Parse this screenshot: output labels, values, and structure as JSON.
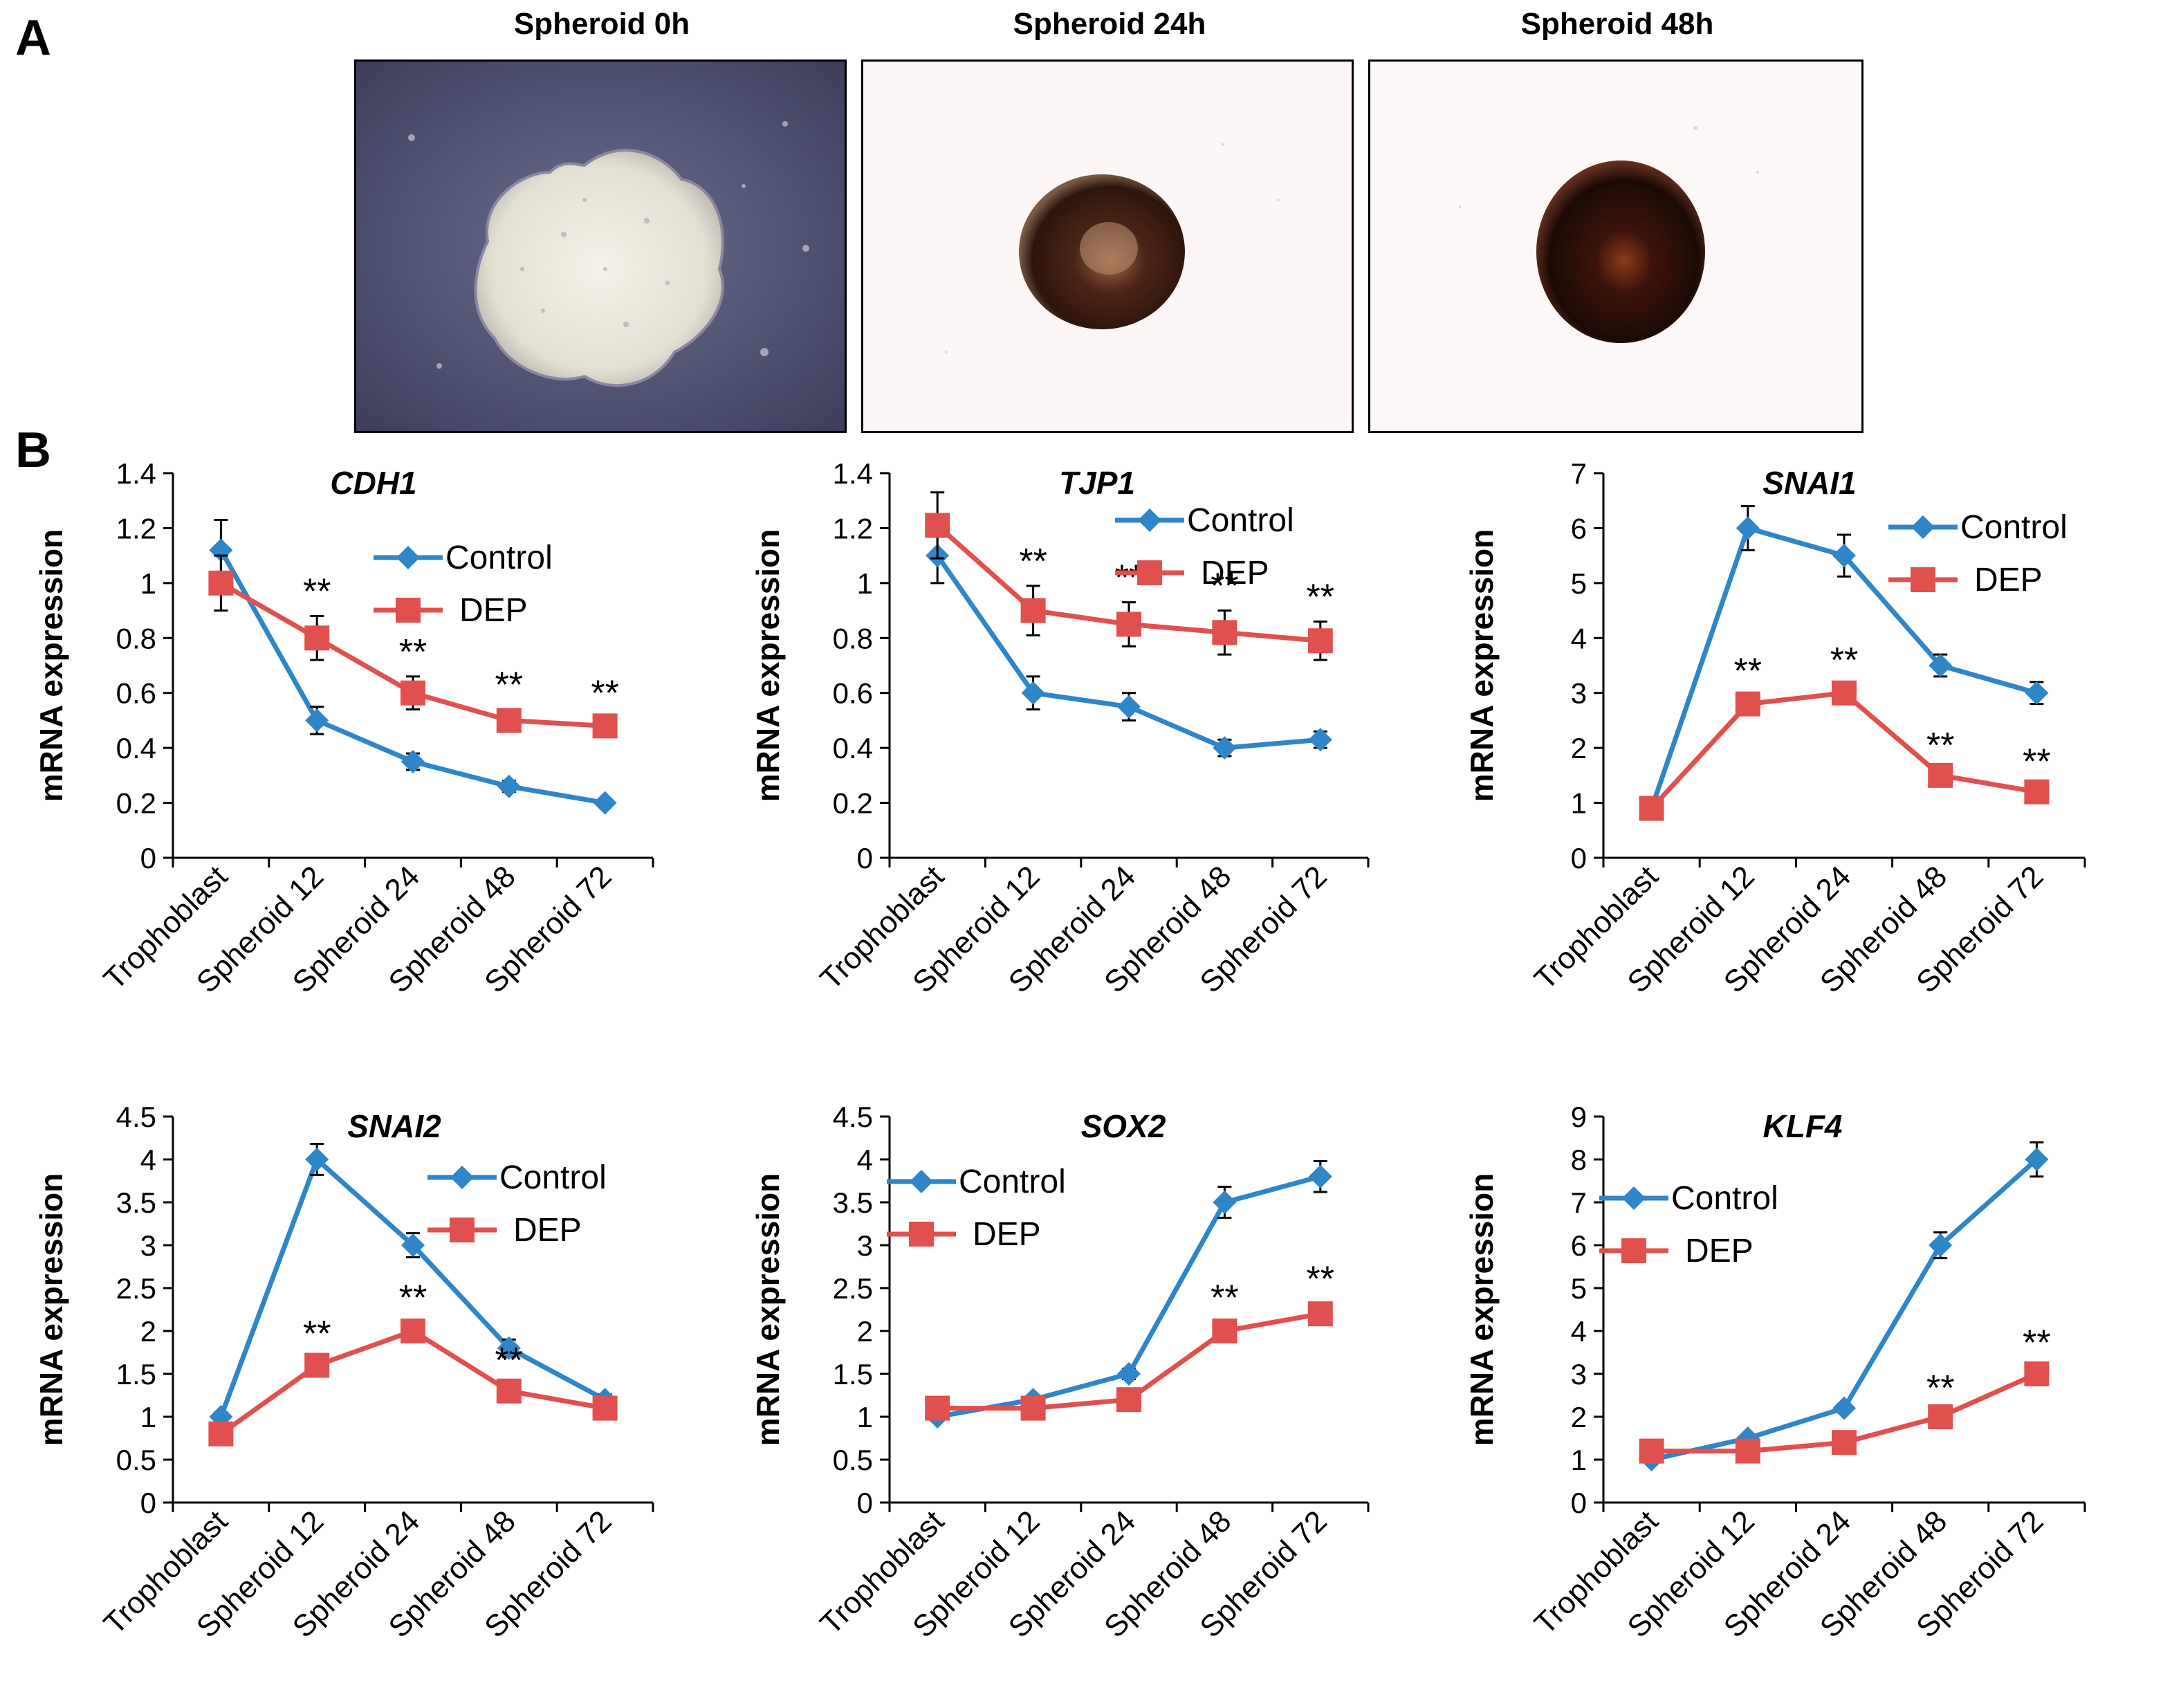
{
  "panels": {
    "a_label": "A",
    "b_label": "B"
  },
  "images": [
    {
      "title": "Spheroid 0h"
    },
    {
      "title": "Spheroid 24h"
    },
    {
      "title": "Spheroid 48h"
    }
  ],
  "colors": {
    "control": "#2e86c8",
    "dep": "#e0504e",
    "axis": "#000000"
  },
  "chart_data": [
    {
      "type": "line",
      "title": "CDH1",
      "ylabel": "mRNA expression",
      "ylim": [
        0,
        1.4
      ],
      "yticks": [
        "0",
        "0.2",
        "0.4",
        "0.6",
        "0.8",
        "1",
        "1.2",
        "1.4"
      ],
      "categories": [
        "Trophoblast",
        "Spheroid 12",
        "Spheroid 24",
        "Spheroid 48",
        "Spheroid 72"
      ],
      "series": [
        {
          "name": "Control",
          "values": [
            1.12,
            0.5,
            0.35,
            0.26,
            0.2
          ],
          "errors": [
            0.11,
            0.05,
            0.03,
            0.02,
            0.01
          ]
        },
        {
          "name": "DEP",
          "values": [
            1.0,
            0.8,
            0.6,
            0.5,
            0.48
          ],
          "errors": [
            0.1,
            0.08,
            0.06,
            0.04,
            0.03
          ]
        }
      ],
      "significance": [
        "",
        "**",
        "**",
        "**",
        "**"
      ],
      "legend_position": "top-right"
    },
    {
      "type": "line",
      "title": "TJP1",
      "ylabel": "mRNA expression",
      "ylim": [
        0,
        1.4
      ],
      "yticks": [
        "0",
        "0.2",
        "0.4",
        "0.6",
        "0.8",
        "1",
        "1.2",
        "1.4"
      ],
      "categories": [
        "Trophoblast",
        "Spheroid 12",
        "Spheroid 24",
        "Spheroid 48",
        "Spheroid 72"
      ],
      "series": [
        {
          "name": "Control",
          "values": [
            1.1,
            0.6,
            0.55,
            0.4,
            0.43
          ],
          "errors": [
            0.1,
            0.06,
            0.05,
            0.03,
            0.03
          ]
        },
        {
          "name": "DEP",
          "values": [
            1.21,
            0.9,
            0.85,
            0.82,
            0.79
          ],
          "errors": [
            0.12,
            0.09,
            0.08,
            0.08,
            0.07
          ]
        }
      ],
      "significance": [
        "",
        "**",
        "**",
        "**",
        "**"
      ],
      "legend_position": "top-right"
    },
    {
      "type": "line",
      "title": "SNAI1",
      "ylabel": "mRNA expression",
      "ylim": [
        0,
        7
      ],
      "yticks": [
        "0",
        "1",
        "2",
        "3",
        "4",
        "5",
        "6",
        "7"
      ],
      "categories": [
        "Trophoblast",
        "Spheroid 12",
        "Spheroid 24",
        "Spheroid 48",
        "Spheroid 72"
      ],
      "series": [
        {
          "name": "Control",
          "values": [
            0.9,
            6.0,
            5.5,
            3.5,
            3.0
          ],
          "errors": [
            0.05,
            0.4,
            0.38,
            0.2,
            0.2
          ]
        },
        {
          "name": "DEP",
          "values": [
            0.9,
            2.8,
            3.0,
            1.5,
            1.2
          ],
          "errors": [
            0.05,
            0.15,
            0.15,
            0.1,
            0.1
          ]
        }
      ],
      "significance": [
        "",
        "**",
        "**",
        "**",
        "**"
      ],
      "legend_position": "top-right"
    },
    {
      "type": "line",
      "title": "SNAI2",
      "ylabel": "mRNA expression",
      "ylim": [
        0,
        4.5
      ],
      "yticks": [
        "0",
        "0.5",
        "1",
        "1.5",
        "2",
        "2.5",
        "3",
        "3.5",
        "4",
        "4.5"
      ],
      "categories": [
        "Trophoblast",
        "Spheroid 12",
        "Spheroid 24",
        "Spheroid 48",
        "Spheroid 72"
      ],
      "series": [
        {
          "name": "Control",
          "values": [
            1.0,
            4.0,
            3.0,
            1.8,
            1.2
          ],
          "errors": [
            0.05,
            0.18,
            0.14,
            0.1,
            0.06
          ]
        },
        {
          "name": "DEP",
          "values": [
            0.8,
            1.6,
            2.0,
            1.3,
            1.1
          ],
          "errors": [
            0.04,
            0.08,
            0.1,
            0.07,
            0.05
          ]
        }
      ],
      "significance": [
        "",
        "**",
        "**",
        "**",
        ""
      ],
      "legend_position": "top-right"
    },
    {
      "type": "line",
      "title": "SOX2",
      "ylabel": "mRNA expression",
      "ylim": [
        0,
        4.5
      ],
      "yticks": [
        "0",
        "0.5",
        "1",
        "1.5",
        "2",
        "2.5",
        "3",
        "3.5",
        "4",
        "4.5"
      ],
      "categories": [
        "Trophoblast",
        "Spheroid 12",
        "Spheroid 24",
        "Spheroid 48",
        "Spheroid 72"
      ],
      "series": [
        {
          "name": "Control",
          "values": [
            1.0,
            1.2,
            1.5,
            3.5,
            3.8
          ],
          "errors": [
            0.05,
            0.05,
            0.06,
            0.18,
            0.18
          ]
        },
        {
          "name": "DEP",
          "values": [
            1.1,
            1.1,
            1.2,
            2.0,
            2.2
          ],
          "errors": [
            0.05,
            0.05,
            0.05,
            0.1,
            0.12
          ]
        }
      ],
      "significance": [
        "",
        "",
        "",
        "**",
        "**"
      ],
      "legend_position": "top-left"
    },
    {
      "type": "line",
      "title": "KLF4",
      "ylabel": "mRNA expression",
      "ylim": [
        0,
        9
      ],
      "yticks": [
        "0",
        "1",
        "2",
        "3",
        "4",
        "5",
        "6",
        "7",
        "8",
        "9"
      ],
      "categories": [
        "Trophoblast",
        "Spheroid 12",
        "Spheroid 24",
        "Spheroid 48",
        "Spheroid 72"
      ],
      "series": [
        {
          "name": "Control",
          "values": [
            1.0,
            1.5,
            2.2,
            6.0,
            8.0
          ],
          "errors": [
            0.05,
            0.08,
            0.1,
            0.3,
            0.4
          ]
        },
        {
          "name": "DEP",
          "values": [
            1.2,
            1.2,
            1.4,
            2.0,
            3.0
          ],
          "errors": [
            0.05,
            0.05,
            0.06,
            0.1,
            0.15
          ]
        }
      ],
      "significance": [
        "",
        "",
        "",
        "**",
        "**"
      ],
      "legend_position": "top-left"
    }
  ]
}
